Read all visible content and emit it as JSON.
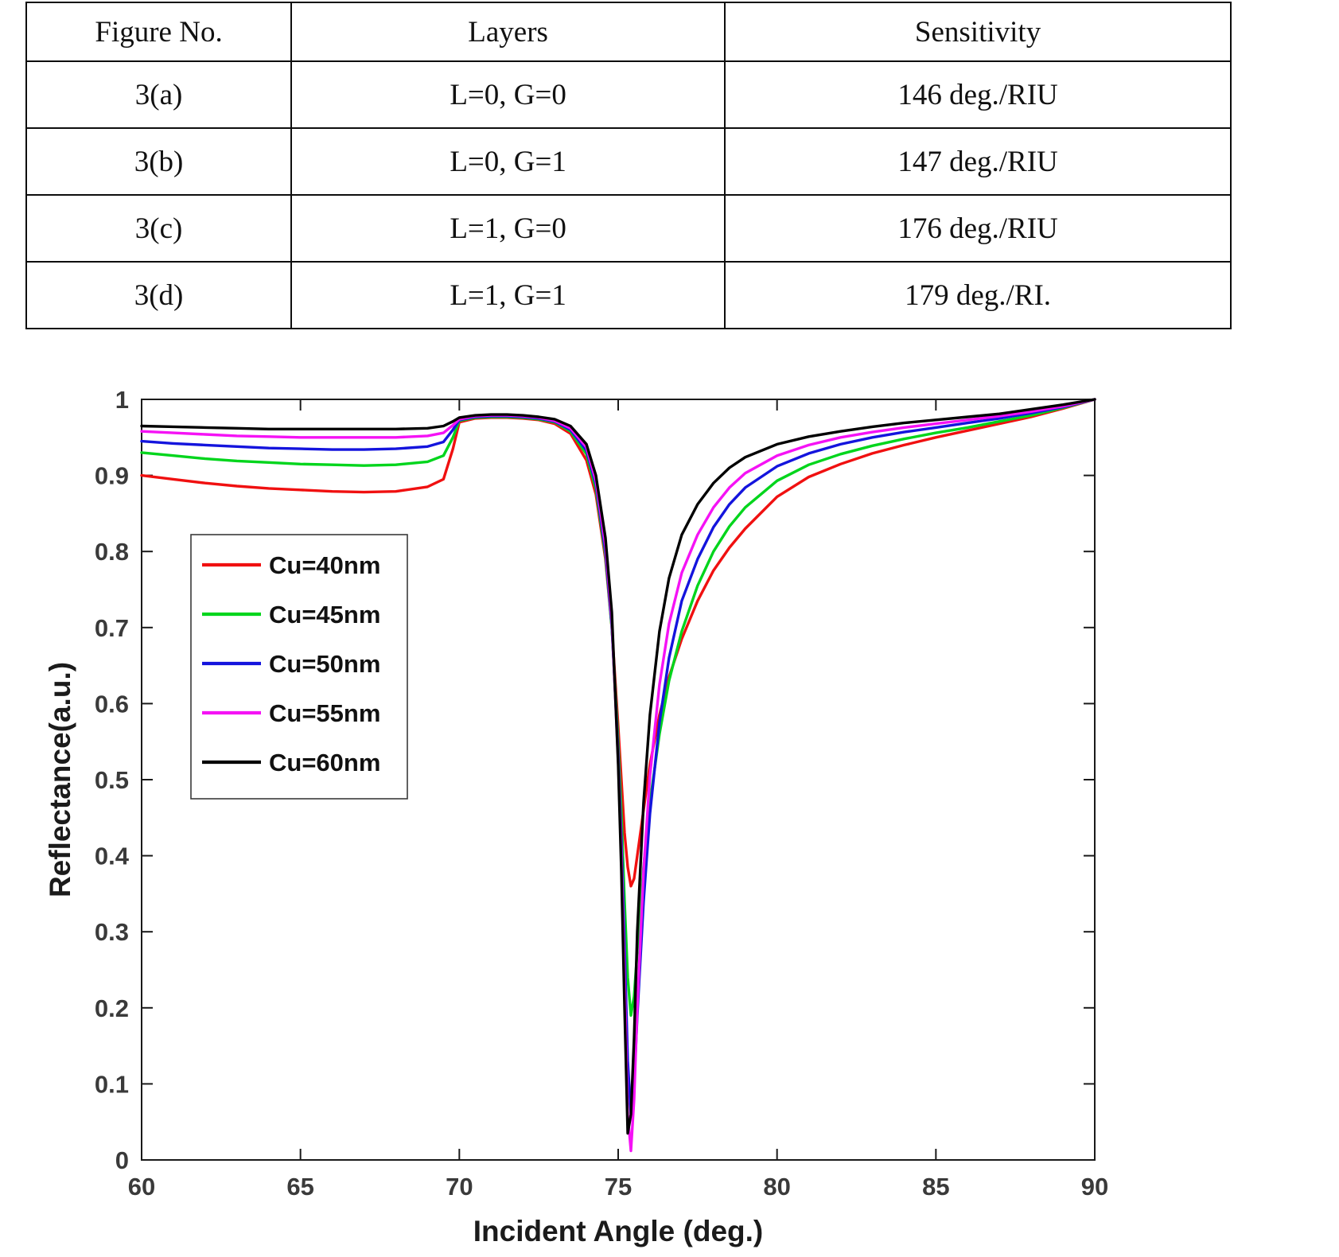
{
  "table": {
    "headers": [
      "Figure No.",
      "Layers",
      "Sensitivity"
    ],
    "rows": [
      [
        "3(a)",
        "L=0, G=0",
        "146 deg./RIU"
      ],
      [
        "3(b)",
        "L=0, G=1",
        "147 deg./RIU"
      ],
      [
        "3(c)",
        "L=1, G=0",
        "176 deg./RIU"
      ],
      [
        "3(d)",
        "L=1, G=1",
        "179 deg./RI."
      ]
    ]
  },
  "chart_data": {
    "type": "line",
    "title": "",
    "xlabel": "Incident Angle (deg.)",
    "ylabel": "Reflectance(a.u.)",
    "xlim": [
      60,
      90
    ],
    "ylim": [
      0,
      1
    ],
    "xticks": [
      60,
      65,
      70,
      75,
      80,
      85,
      90
    ],
    "yticks": [
      0,
      0.1,
      0.2,
      0.3,
      0.4,
      0.5,
      0.6,
      0.7,
      0.8,
      0.9,
      1
    ],
    "grid": false,
    "legend_position": "upper-left-inside",
    "x": [
      60,
      61,
      62,
      63,
      64,
      65,
      66,
      67,
      68,
      69,
      69.5,
      69.8,
      70,
      70.5,
      71,
      71.5,
      72,
      72.5,
      73,
      73.5,
      74,
      74.3,
      74.6,
      74.8,
      75,
      75.1,
      75.2,
      75.3,
      75.4,
      75.5,
      75.6,
      75.8,
      76,
      76.3,
      76.6,
      77,
      77.5,
      78,
      78.5,
      79,
      80,
      81,
      82,
      83,
      84,
      85,
      86,
      87,
      88,
      89,
      90
    ],
    "series": [
      {
        "name": "Cu=40nm",
        "color": "#f01010",
        "resonance_dip_min": 0.36,
        "y": [
          0.9,
          0.895,
          0.89,
          0.886,
          0.883,
          0.881,
          0.879,
          0.878,
          0.879,
          0.885,
          0.895,
          0.935,
          0.97,
          0.975,
          0.976,
          0.976,
          0.975,
          0.973,
          0.968,
          0.955,
          0.92,
          0.875,
          0.79,
          0.7,
          0.57,
          0.5,
          0.43,
          0.385,
          0.36,
          0.37,
          0.4,
          0.46,
          0.52,
          0.585,
          0.635,
          0.685,
          0.735,
          0.775,
          0.805,
          0.83,
          0.872,
          0.898,
          0.915,
          0.929,
          0.94,
          0.95,
          0.959,
          0.968,
          0.977,
          0.988,
          1.0
        ]
      },
      {
        "name": "Cu=45nm",
        "color": "#00d51c",
        "resonance_dip_min": 0.19,
        "y": [
          0.93,
          0.926,
          0.922,
          0.919,
          0.917,
          0.915,
          0.914,
          0.913,
          0.914,
          0.918,
          0.926,
          0.95,
          0.972,
          0.976,
          0.977,
          0.977,
          0.976,
          0.974,
          0.97,
          0.958,
          0.928,
          0.882,
          0.795,
          0.7,
          0.55,
          0.455,
          0.34,
          0.24,
          0.19,
          0.215,
          0.275,
          0.385,
          0.47,
          0.56,
          0.63,
          0.695,
          0.755,
          0.8,
          0.833,
          0.858,
          0.893,
          0.914,
          0.928,
          0.939,
          0.948,
          0.956,
          0.963,
          0.971,
          0.979,
          0.989,
          1.0
        ]
      },
      {
        "name": "Cu=50nm",
        "color": "#1414dd",
        "resonance_dip_min": 0.06,
        "y": [
          0.945,
          0.942,
          0.94,
          0.938,
          0.936,
          0.935,
          0.934,
          0.934,
          0.935,
          0.938,
          0.944,
          0.96,
          0.973,
          0.977,
          0.978,
          0.978,
          0.977,
          0.975,
          0.971,
          0.96,
          0.933,
          0.888,
          0.8,
          0.703,
          0.535,
          0.42,
          0.28,
          0.13,
          0.06,
          0.1,
          0.19,
          0.34,
          0.455,
          0.575,
          0.66,
          0.735,
          0.79,
          0.832,
          0.862,
          0.884,
          0.912,
          0.929,
          0.941,
          0.95,
          0.957,
          0.963,
          0.969,
          0.975,
          0.982,
          0.99,
          1.0
        ]
      },
      {
        "name": "Cu=55nm",
        "color": "#f512f5",
        "resonance_dip_min": 0.01,
        "y": [
          0.958,
          0.956,
          0.954,
          0.952,
          0.951,
          0.95,
          0.95,
          0.95,
          0.95,
          0.952,
          0.956,
          0.966,
          0.974,
          0.978,
          0.979,
          0.979,
          0.978,
          0.976,
          0.972,
          0.962,
          0.937,
          0.893,
          0.808,
          0.71,
          0.525,
          0.4,
          0.24,
          0.06,
          0.012,
          0.08,
          0.2,
          0.38,
          0.505,
          0.625,
          0.705,
          0.772,
          0.822,
          0.858,
          0.884,
          0.903,
          0.926,
          0.94,
          0.95,
          0.957,
          0.963,
          0.968,
          0.973,
          0.978,
          0.984,
          0.991,
          1.0
        ]
      },
      {
        "name": "Cu=60nm",
        "color": "#000000",
        "resonance_dip_min": 0.03,
        "y": [
          0.965,
          0.964,
          0.963,
          0.962,
          0.961,
          0.961,
          0.961,
          0.961,
          0.961,
          0.962,
          0.965,
          0.971,
          0.976,
          0.979,
          0.98,
          0.98,
          0.979,
          0.977,
          0.974,
          0.965,
          0.941,
          0.9,
          0.818,
          0.72,
          0.52,
          0.38,
          0.2,
          0.035,
          0.06,
          0.16,
          0.3,
          0.47,
          0.585,
          0.695,
          0.765,
          0.822,
          0.862,
          0.89,
          0.91,
          0.924,
          0.941,
          0.951,
          0.958,
          0.964,
          0.969,
          0.973,
          0.977,
          0.981,
          0.987,
          0.993,
          1.0
        ]
      }
    ]
  },
  "colors": {
    "axis": "#1a1a1a",
    "tick_text": "#3a3a3a",
    "table_border": "#0d0d0d",
    "background": "#ffffff"
  }
}
